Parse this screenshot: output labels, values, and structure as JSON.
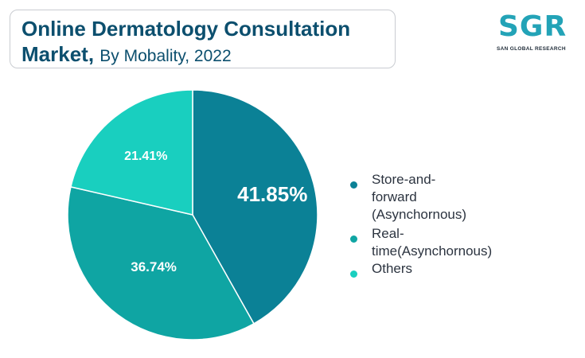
{
  "header": {
    "title_bold_line1": "Online Dermatology Consultation",
    "title_bold_line2": "Market,",
    "title_regular": "By Mobality, 2022"
  },
  "logo": {
    "letters": "SGR",
    "tagline": "SAN GLOBAL RESEARCH"
  },
  "chart_data": {
    "type": "pie",
    "title": "Online Dermatology Consultation Market, By Mobality, 2022",
    "categories": [
      "Store-and-forward (Asynchornous)",
      "Real-time(Asynchornous)",
      "Others"
    ],
    "values": [
      41.85,
      36.74,
      21.41
    ],
    "data_labels": [
      "41.85%",
      "36.74%",
      "21.41%"
    ],
    "colors": [
      "#0b8196",
      "#0fa5a3",
      "#19cfbf"
    ],
    "legend_position": "right"
  },
  "legend": {
    "items": [
      {
        "label": "Store-and-forward\n(Asynchornous)",
        "color": "#0b8196"
      },
      {
        "label": "Real-time(Asynchornous)",
        "color": "#0fa5a3"
      },
      {
        "label": "Others",
        "color": "#19cfbf"
      }
    ]
  }
}
